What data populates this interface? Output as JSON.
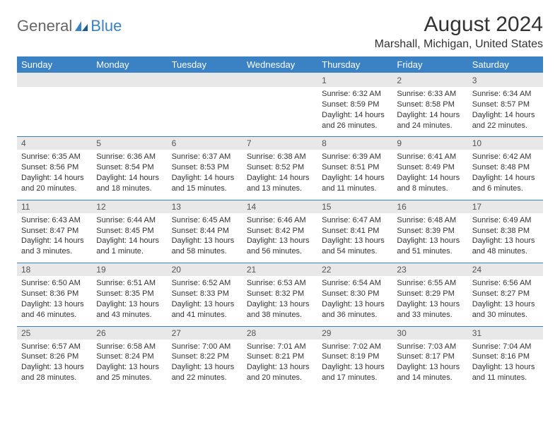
{
  "brand": {
    "part1": "General",
    "part2": "Blue"
  },
  "title": "August 2024",
  "location": "Marshall, Michigan, United States",
  "colors": {
    "header_bg": "#3b82c4",
    "header_text": "#ffffff",
    "daynum_bg": "#e8e8e8",
    "daynum_text": "#555555",
    "body_text": "#333333",
    "rule": "#3b82c4",
    "page_bg": "#ffffff",
    "logo_gray": "#666666",
    "logo_blue": "#3b82c4"
  },
  "typography": {
    "title_fontsize": 30,
    "location_fontsize": 16,
    "header_fontsize": 13,
    "daynum_fontsize": 12,
    "cell_fontsize": 11
  },
  "day_headers": [
    "Sunday",
    "Monday",
    "Tuesday",
    "Wednesday",
    "Thursday",
    "Friday",
    "Saturday"
  ],
  "weeks": [
    [
      null,
      null,
      null,
      null,
      {
        "n": "1",
        "sr": "Sunrise: 6:32 AM",
        "ss": "Sunset: 8:59 PM",
        "dl1": "Daylight: 14 hours",
        "dl2": "and 26 minutes."
      },
      {
        "n": "2",
        "sr": "Sunrise: 6:33 AM",
        "ss": "Sunset: 8:58 PM",
        "dl1": "Daylight: 14 hours",
        "dl2": "and 24 minutes."
      },
      {
        "n": "3",
        "sr": "Sunrise: 6:34 AM",
        "ss": "Sunset: 8:57 PM",
        "dl1": "Daylight: 14 hours",
        "dl2": "and 22 minutes."
      }
    ],
    [
      {
        "n": "4",
        "sr": "Sunrise: 6:35 AM",
        "ss": "Sunset: 8:56 PM",
        "dl1": "Daylight: 14 hours",
        "dl2": "and 20 minutes."
      },
      {
        "n": "5",
        "sr": "Sunrise: 6:36 AM",
        "ss": "Sunset: 8:54 PM",
        "dl1": "Daylight: 14 hours",
        "dl2": "and 18 minutes."
      },
      {
        "n": "6",
        "sr": "Sunrise: 6:37 AM",
        "ss": "Sunset: 8:53 PM",
        "dl1": "Daylight: 14 hours",
        "dl2": "and 15 minutes."
      },
      {
        "n": "7",
        "sr": "Sunrise: 6:38 AM",
        "ss": "Sunset: 8:52 PM",
        "dl1": "Daylight: 14 hours",
        "dl2": "and 13 minutes."
      },
      {
        "n": "8",
        "sr": "Sunrise: 6:39 AM",
        "ss": "Sunset: 8:51 PM",
        "dl1": "Daylight: 14 hours",
        "dl2": "and 11 minutes."
      },
      {
        "n": "9",
        "sr": "Sunrise: 6:41 AM",
        "ss": "Sunset: 8:49 PM",
        "dl1": "Daylight: 14 hours",
        "dl2": "and 8 minutes."
      },
      {
        "n": "10",
        "sr": "Sunrise: 6:42 AM",
        "ss": "Sunset: 8:48 PM",
        "dl1": "Daylight: 14 hours",
        "dl2": "and 6 minutes."
      }
    ],
    [
      {
        "n": "11",
        "sr": "Sunrise: 6:43 AM",
        "ss": "Sunset: 8:47 PM",
        "dl1": "Daylight: 14 hours",
        "dl2": "and 3 minutes."
      },
      {
        "n": "12",
        "sr": "Sunrise: 6:44 AM",
        "ss": "Sunset: 8:45 PM",
        "dl1": "Daylight: 14 hours",
        "dl2": "and 1 minute."
      },
      {
        "n": "13",
        "sr": "Sunrise: 6:45 AM",
        "ss": "Sunset: 8:44 PM",
        "dl1": "Daylight: 13 hours",
        "dl2": "and 58 minutes."
      },
      {
        "n": "14",
        "sr": "Sunrise: 6:46 AM",
        "ss": "Sunset: 8:42 PM",
        "dl1": "Daylight: 13 hours",
        "dl2": "and 56 minutes."
      },
      {
        "n": "15",
        "sr": "Sunrise: 6:47 AM",
        "ss": "Sunset: 8:41 PM",
        "dl1": "Daylight: 13 hours",
        "dl2": "and 54 minutes."
      },
      {
        "n": "16",
        "sr": "Sunrise: 6:48 AM",
        "ss": "Sunset: 8:39 PM",
        "dl1": "Daylight: 13 hours",
        "dl2": "and 51 minutes."
      },
      {
        "n": "17",
        "sr": "Sunrise: 6:49 AM",
        "ss": "Sunset: 8:38 PM",
        "dl1": "Daylight: 13 hours",
        "dl2": "and 48 minutes."
      }
    ],
    [
      {
        "n": "18",
        "sr": "Sunrise: 6:50 AM",
        "ss": "Sunset: 8:36 PM",
        "dl1": "Daylight: 13 hours",
        "dl2": "and 46 minutes."
      },
      {
        "n": "19",
        "sr": "Sunrise: 6:51 AM",
        "ss": "Sunset: 8:35 PM",
        "dl1": "Daylight: 13 hours",
        "dl2": "and 43 minutes."
      },
      {
        "n": "20",
        "sr": "Sunrise: 6:52 AM",
        "ss": "Sunset: 8:33 PM",
        "dl1": "Daylight: 13 hours",
        "dl2": "and 41 minutes."
      },
      {
        "n": "21",
        "sr": "Sunrise: 6:53 AM",
        "ss": "Sunset: 8:32 PM",
        "dl1": "Daylight: 13 hours",
        "dl2": "and 38 minutes."
      },
      {
        "n": "22",
        "sr": "Sunrise: 6:54 AM",
        "ss": "Sunset: 8:30 PM",
        "dl1": "Daylight: 13 hours",
        "dl2": "and 36 minutes."
      },
      {
        "n": "23",
        "sr": "Sunrise: 6:55 AM",
        "ss": "Sunset: 8:29 PM",
        "dl1": "Daylight: 13 hours",
        "dl2": "and 33 minutes."
      },
      {
        "n": "24",
        "sr": "Sunrise: 6:56 AM",
        "ss": "Sunset: 8:27 PM",
        "dl1": "Daylight: 13 hours",
        "dl2": "and 30 minutes."
      }
    ],
    [
      {
        "n": "25",
        "sr": "Sunrise: 6:57 AM",
        "ss": "Sunset: 8:26 PM",
        "dl1": "Daylight: 13 hours",
        "dl2": "and 28 minutes."
      },
      {
        "n": "26",
        "sr": "Sunrise: 6:58 AM",
        "ss": "Sunset: 8:24 PM",
        "dl1": "Daylight: 13 hours",
        "dl2": "and 25 minutes."
      },
      {
        "n": "27",
        "sr": "Sunrise: 7:00 AM",
        "ss": "Sunset: 8:22 PM",
        "dl1": "Daylight: 13 hours",
        "dl2": "and 22 minutes."
      },
      {
        "n": "28",
        "sr": "Sunrise: 7:01 AM",
        "ss": "Sunset: 8:21 PM",
        "dl1": "Daylight: 13 hours",
        "dl2": "and 20 minutes."
      },
      {
        "n": "29",
        "sr": "Sunrise: 7:02 AM",
        "ss": "Sunset: 8:19 PM",
        "dl1": "Daylight: 13 hours",
        "dl2": "and 17 minutes."
      },
      {
        "n": "30",
        "sr": "Sunrise: 7:03 AM",
        "ss": "Sunset: 8:17 PM",
        "dl1": "Daylight: 13 hours",
        "dl2": "and 14 minutes."
      },
      {
        "n": "31",
        "sr": "Sunrise: 7:04 AM",
        "ss": "Sunset: 8:16 PM",
        "dl1": "Daylight: 13 hours",
        "dl2": "and 11 minutes."
      }
    ]
  ]
}
